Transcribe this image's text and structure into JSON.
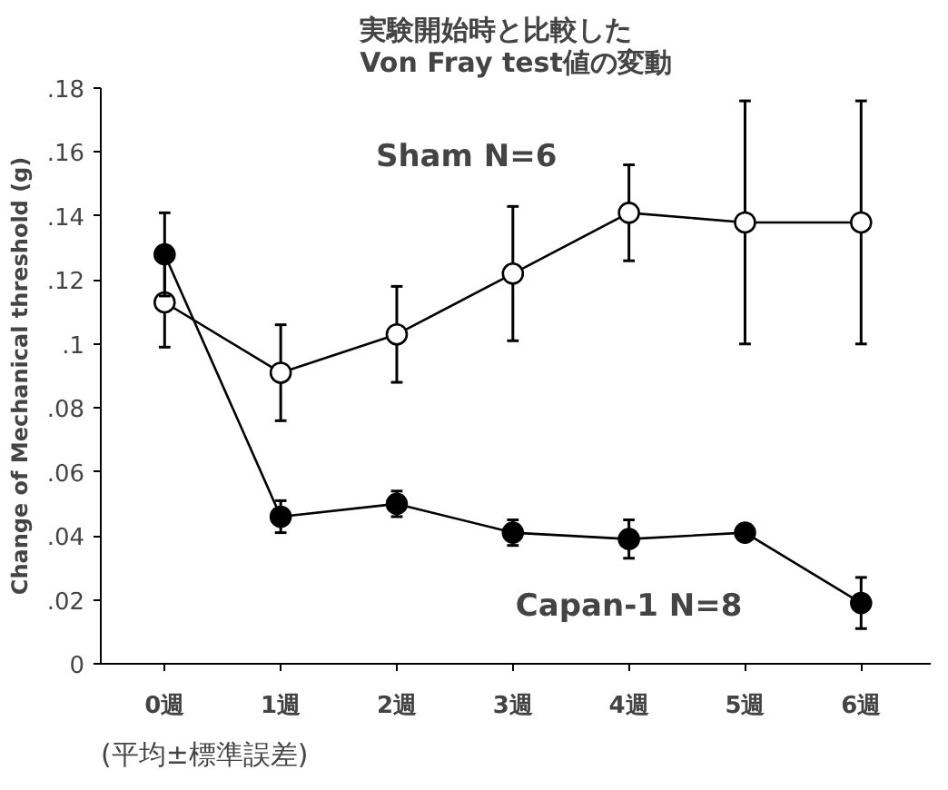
{
  "chart_data": {
    "type": "line",
    "title": "実験開始時と比較した\nVon Fray test値の変動",
    "ylabel": "Change of Mechanical threshold (g)",
    "categories": [
      "0週",
      "1週",
      "2週",
      "3週",
      "4週",
      "5週",
      "6週"
    ],
    "series": [
      {
        "name": "Sham N=6",
        "color": "#000000",
        "values": [
          0.113,
          0.091,
          0.103,
          0.122,
          0.141,
          0.138,
          0.138
        ],
        "errors": [
          0.014,
          0.015,
          0.015,
          0.021,
          0.015,
          0.038,
          0.038
        ]
      },
      {
        "name": "Capan-1 N=8",
        "color": "#000000",
        "values": [
          0.128,
          0.046,
          0.05,
          0.041,
          0.039,
          0.041,
          0.019
        ],
        "errors": [
          0.013,
          0.005,
          0.004,
          0.004,
          0.006,
          null,
          0.008
        ]
      }
    ],
    "ylim": [
      0,
      0.18
    ],
    "yticks": [
      0,
      {
        "value": 0.02,
        "label": ".02"
      },
      {
        "value": 0.04,
        "label": ".04"
      },
      {
        "value": 0.06,
        "label": ".06"
      },
      {
        "value": 0.08,
        "label": ".08"
      },
      {
        "value": 0.1,
        "label": ".1"
      },
      {
        "value": 0.12,
        "label": ".12"
      },
      {
        "value": 0.14,
        "label": ".14"
      },
      {
        "value": 0.16,
        "label": ".16"
      },
      {
        "value": 0.18,
        "label": ".18"
      }
    ],
    "marker": "circle",
    "grid": false,
    "annotations": [
      "(平均±標準誤差)"
    ]
  }
}
